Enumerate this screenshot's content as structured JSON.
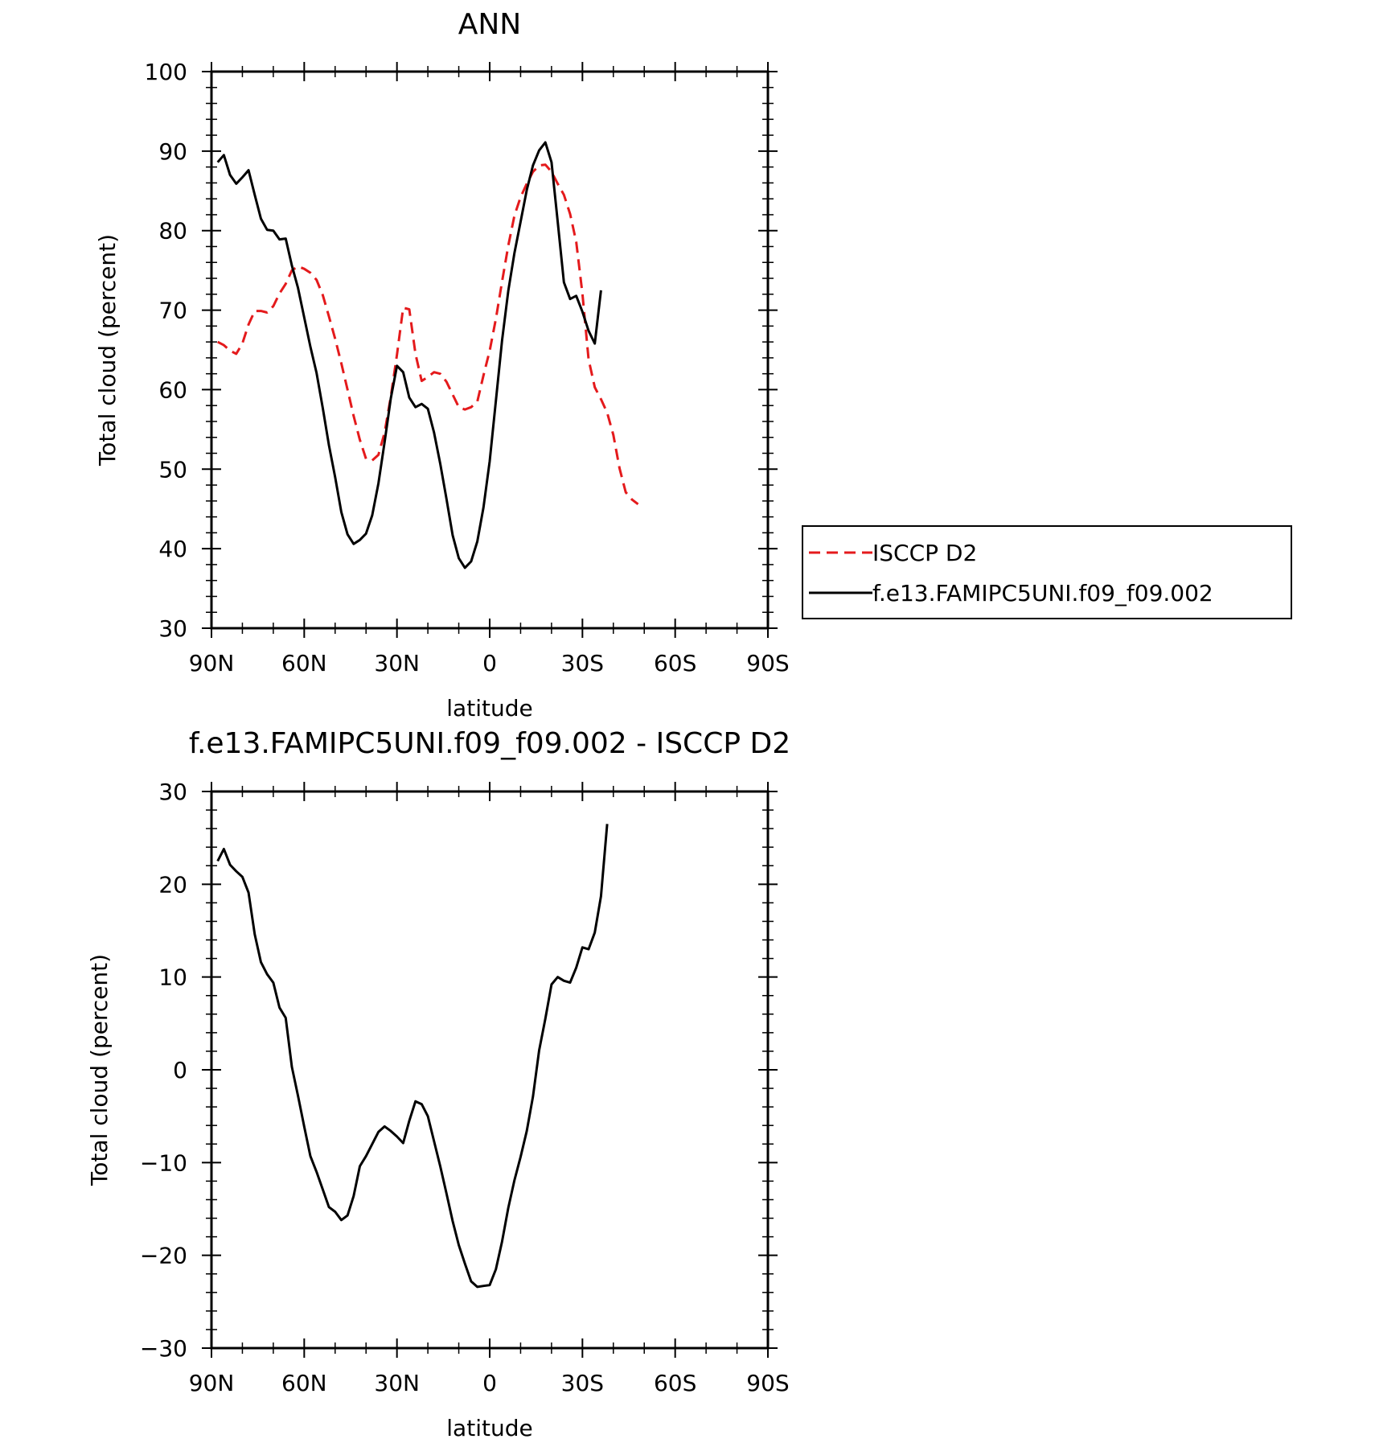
{
  "chart_data": [
    {
      "type": "line",
      "title": "ANN",
      "xlabel": "latitude",
      "ylabel": "Total cloud (percent)",
      "xlim": [
        90,
        -90
      ],
      "ylim": [
        30,
        100
      ],
      "xticks": [
        {
          "value": 90,
          "label": "90N"
        },
        {
          "value": 60,
          "label": "60N"
        },
        {
          "value": 30,
          "label": "30N"
        },
        {
          "value": 0,
          "label": "0"
        },
        {
          "value": -30,
          "label": "30S"
        },
        {
          "value": -60,
          "label": "60S"
        },
        {
          "value": -90,
          "label": "90S"
        }
      ],
      "yticks": [
        {
          "value": 30,
          "label": "30"
        },
        {
          "value": 40,
          "label": "40"
        },
        {
          "value": 50,
          "label": "50"
        },
        {
          "value": 60,
          "label": "60"
        },
        {
          "value": 70,
          "label": "70"
        },
        {
          "value": 80,
          "label": "80"
        },
        {
          "value": 90,
          "label": "90"
        },
        {
          "value": 100,
          "label": "100"
        }
      ],
      "legend_position": "right",
      "series": [
        {
          "name": "ISCCP D2",
          "color": "#e41a1c",
          "dash": "dashed",
          "points": [
            [
              88,
              66
            ],
            [
              86,
              65.6
            ],
            [
              84,
              64.9
            ],
            [
              82,
              64.5
            ],
            [
              80,
              65.8
            ],
            [
              78,
              68.2
            ],
            [
              76,
              69.9
            ],
            [
              74,
              69.9
            ],
            [
              72,
              69.7
            ],
            [
              70,
              70.5
            ],
            [
              68,
              72.1
            ],
            [
              66,
              73.3
            ],
            [
              64,
              75
            ],
            [
              62,
              75.5
            ],
            [
              60,
              75.2
            ],
            [
              58,
              74.7
            ],
            [
              56,
              73.8
            ],
            [
              54,
              71.9
            ],
            [
              52,
              69.2
            ],
            [
              50,
              66.4
            ],
            [
              48,
              63.3
            ],
            [
              46,
              60
            ],
            [
              44,
              56.7
            ],
            [
              42,
              53.7
            ],
            [
              40,
              51.3
            ],
            [
              38,
              51.1
            ],
            [
              36,
              51.8
            ],
            [
              34,
              54.6
            ],
            [
              32,
              59.1
            ],
            [
              30,
              64.4
            ],
            [
              28,
              70.3
            ],
            [
              26,
              70.1
            ],
            [
              24,
              64.5
            ],
            [
              22,
              61.1
            ],
            [
              20,
              61.6
            ],
            [
              18,
              62.2
            ],
            [
              16,
              62
            ],
            [
              14,
              61
            ],
            [
              12,
              59.4
            ],
            [
              10,
              57.8
            ],
            [
              8,
              57.5
            ],
            [
              6,
              57.8
            ],
            [
              4,
              58.5
            ],
            [
              2,
              61.8
            ],
            [
              0,
              64.9
            ],
            [
              -2,
              68.9
            ],
            [
              -4,
              73.6
            ],
            [
              -6,
              78.1
            ],
            [
              -8,
              81.9
            ],
            [
              -10,
              84.2
            ],
            [
              -12,
              85.9
            ],
            [
              -14,
              87.4
            ],
            [
              -16,
              88.2
            ],
            [
              -18,
              88.3
            ],
            [
              -20,
              87.4
            ],
            [
              -22,
              85.9
            ],
            [
              -24,
              84.5
            ],
            [
              -26,
              82.1
            ],
            [
              -28,
              78.6
            ],
            [
              -30,
              72.1
            ],
            [
              -32,
              63.8
            ],
            [
              -34,
              60.3
            ],
            [
              -36,
              58.8
            ],
            [
              -38,
              57.1
            ],
            [
              -40,
              54.3
            ],
            [
              -42,
              50.1
            ],
            [
              -44,
              47.1
            ],
            [
              -46,
              46.2
            ],
            [
              -48,
              45.6
            ]
          ]
        },
        {
          "name": "f.e13.FAMIPC5UNI.f09_f09.002",
          "color": "#000000",
          "dash": "solid",
          "points": [
            [
              88,
              88.6
            ],
            [
              86,
              89.5
            ],
            [
              84,
              87
            ],
            [
              82,
              85.9
            ],
            [
              80,
              86.7
            ],
            [
              78,
              87.6
            ],
            [
              76,
              84.5
            ],
            [
              74,
              81.5
            ],
            [
              72,
              80.1
            ],
            [
              70,
              80
            ],
            [
              68,
              78.9
            ],
            [
              66,
              79
            ],
            [
              64,
              75.6
            ],
            [
              62,
              72.8
            ],
            [
              60,
              69.1
            ],
            [
              58,
              65.4
            ],
            [
              56,
              62.1
            ],
            [
              54,
              57.7
            ],
            [
              52,
              53
            ],
            [
              50,
              49
            ],
            [
              48,
              44.6
            ],
            [
              46,
              41.8
            ],
            [
              44,
              40.6
            ],
            [
              42,
              41.1
            ],
            [
              40,
              41.9
            ],
            [
              38,
              44.2
            ],
            [
              36,
              48.2
            ],
            [
              34,
              53.4
            ],
            [
              32,
              58.9
            ],
            [
              30,
              63
            ],
            [
              28,
              62.2
            ],
            [
              26,
              59
            ],
            [
              24,
              57.8
            ],
            [
              22,
              58.2
            ],
            [
              20,
              57.6
            ],
            [
              18,
              54.6
            ],
            [
              16,
              50.7
            ],
            [
              14,
              46.3
            ],
            [
              12,
              41.7
            ],
            [
              10,
              38.8
            ],
            [
              8,
              37.6
            ],
            [
              6,
              38.4
            ],
            [
              4,
              40.9
            ],
            [
              2,
              45.2
            ],
            [
              0,
              51
            ],
            [
              -2,
              58.6
            ],
            [
              -4,
              66.2
            ],
            [
              -6,
              72.4
            ],
            [
              -8,
              77.2
            ],
            [
              -10,
              81.1
            ],
            [
              -12,
              85.1
            ],
            [
              -14,
              88.2
            ],
            [
              -16,
              90.1
            ],
            [
              -18,
              91.1
            ],
            [
              -20,
              88.6
            ],
            [
              -22,
              81.1
            ],
            [
              -24,
              73.5
            ],
            [
              -26,
              71.4
            ],
            [
              -28,
              71.8
            ],
            [
              -30,
              69.8
            ],
            [
              -32,
              67.4
            ],
            [
              -34,
              65.8
            ],
            [
              -36,
              72.5
            ]
          ]
        }
      ]
    },
    {
      "type": "line",
      "title": "f.e13.FAMIPC5UNI.f09_f09.002 - ISCCP D2",
      "xlabel": "latitude",
      "ylabel": "Total cloud (percent)",
      "xlim": [
        90,
        -90
      ],
      "ylim": [
        -30,
        30
      ],
      "xticks": [
        {
          "value": 90,
          "label": "90N"
        },
        {
          "value": 60,
          "label": "60N"
        },
        {
          "value": 30,
          "label": "30N"
        },
        {
          "value": 0,
          "label": "0"
        },
        {
          "value": -30,
          "label": "30S"
        },
        {
          "value": -60,
          "label": "60S"
        },
        {
          "value": -90,
          "label": "90S"
        }
      ],
      "yticks": [
        {
          "value": -30,
          "label": "−30"
        },
        {
          "value": -20,
          "label": "−20"
        },
        {
          "value": -10,
          "label": "−10"
        },
        {
          "value": 0,
          "label": "0"
        },
        {
          "value": 10,
          "label": "10"
        },
        {
          "value": 20,
          "label": "20"
        },
        {
          "value": 30,
          "label": "30"
        }
      ],
      "series": [
        {
          "color": "#000000",
          "dash": "solid",
          "points": [
            [
              88,
              22.5
            ],
            [
              86,
              23.8
            ],
            [
              84,
              22.1
            ],
            [
              82,
              21.4
            ],
            [
              80,
              20.8
            ],
            [
              78,
              19.1
            ],
            [
              76,
              14.6
            ],
            [
              74,
              11.6
            ],
            [
              72,
              10.3
            ],
            [
              70,
              9.4
            ],
            [
              68,
              6.7
            ],
            [
              66,
              5.6
            ],
            [
              64,
              0.3
            ],
            [
              62,
              -2.8
            ],
            [
              60,
              -6.1
            ],
            [
              58,
              -9.3
            ],
            [
              56,
              -11
            ],
            [
              54,
              -12.9
            ],
            [
              52,
              -14.8
            ],
            [
              50,
              -15.3
            ],
            [
              48,
              -16.2
            ],
            [
              46,
              -15.7
            ],
            [
              44,
              -13.6
            ],
            [
              42,
              -10.4
            ],
            [
              40,
              -9.3
            ],
            [
              38,
              -8
            ],
            [
              36,
              -6.7
            ],
            [
              34,
              -6.1
            ],
            [
              32,
              -6.6
            ],
            [
              30,
              -7.2
            ],
            [
              28,
              -7.9
            ],
            [
              26,
              -5.5
            ],
            [
              24,
              -3.4
            ],
            [
              22,
              -3.7
            ],
            [
              20,
              -5
            ],
            [
              18,
              -7.7
            ],
            [
              16,
              -10.4
            ],
            [
              14,
              -13.3
            ],
            [
              12,
              -16.3
            ],
            [
              10,
              -18.9
            ],
            [
              8,
              -20.9
            ],
            [
              6,
              -22.8
            ],
            [
              4,
              -23.4
            ],
            [
              2,
              -23.3
            ],
            [
              0,
              -23.2
            ],
            [
              -2,
              -21.5
            ],
            [
              -4,
              -18.5
            ],
            [
              -6,
              -14.9
            ],
            [
              -8,
              -11.9
            ],
            [
              -10,
              -9.4
            ],
            [
              -12,
              -6.6
            ],
            [
              -14,
              -2.9
            ],
            [
              -16,
              2.1
            ],
            [
              -18,
              5.5
            ],
            [
              -20,
              9.2
            ],
            [
              -22,
              10
            ],
            [
              -24,
              9.6
            ],
            [
              -26,
              9.4
            ],
            [
              -28,
              11
            ],
            [
              -30,
              13.2
            ],
            [
              -32,
              13
            ],
            [
              -34,
              14.8
            ],
            [
              -36,
              18.7
            ],
            [
              -38,
              26.5
            ]
          ]
        }
      ]
    }
  ]
}
